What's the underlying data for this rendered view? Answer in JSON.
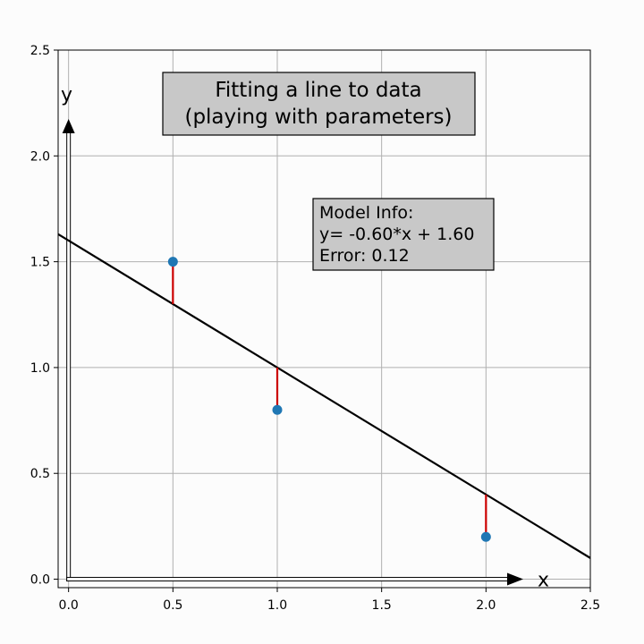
{
  "chart_data": {
    "type": "scatter",
    "title_lines": [
      "Fitting a line to data",
      "(playing with parameters)"
    ],
    "xlabel": "x",
    "ylabel": "y",
    "xlim": [
      -0.05,
      2.5
    ],
    "ylim": [
      -0.04,
      2.5
    ],
    "x_ticks": [
      0.0,
      0.5,
      1.0,
      1.5,
      2.0,
      2.5
    ],
    "x_tick_labels": [
      "0.0",
      "0.5",
      "1.0",
      "1.5",
      "2.0",
      "2.5"
    ],
    "y_ticks": [
      0.0,
      0.5,
      1.0,
      1.5,
      2.0,
      2.5
    ],
    "y_tick_labels": [
      "0.0",
      "0.5",
      "1.0",
      "1.5",
      "2.0",
      "2.5"
    ],
    "grid": true,
    "points": {
      "x": [
        0.5,
        1.0,
        2.0
      ],
      "y": [
        1.5,
        0.8,
        0.2
      ]
    },
    "line": {
      "slope": -0.6,
      "intercept": 1.6
    },
    "residuals": true,
    "info_lines": [
      "Model Info:",
      "y= -0.60*x + 1.60",
      "Error: 0.12"
    ],
    "colors": {
      "point": "#1f77b4",
      "line": "#000000",
      "residual": "#cc0000",
      "grid": "#b0b0b0",
      "box_fill": "#c8c8c8"
    }
  }
}
